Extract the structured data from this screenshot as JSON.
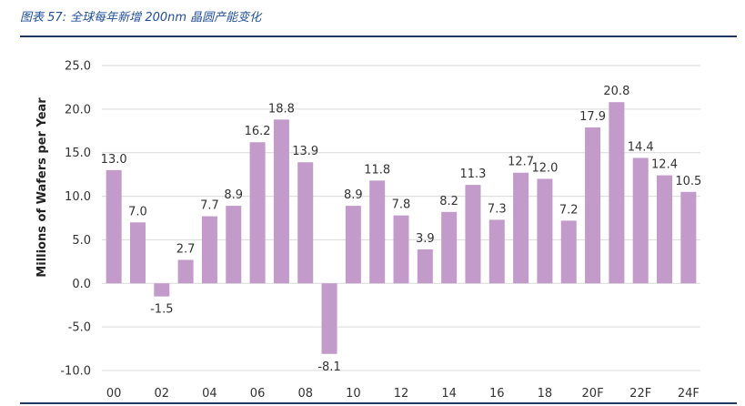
{
  "caption": "图表 57:  全球每年新增 200nm 晶圆产能变化",
  "chart_data": {
    "type": "bar",
    "ylabel": "Millions of Wafers per Year",
    "xlabel": "",
    "ylim": [
      -10,
      25
    ],
    "yticks": [
      -10,
      -5,
      0,
      5,
      10,
      15,
      20,
      25
    ],
    "ytick_labels": [
      "-10.0",
      "-5.0",
      "0.0",
      "5.0",
      "10.0",
      "15.0",
      "20.0",
      "25.0"
    ],
    "grid": true,
    "bar_color": "#c39bcb",
    "categories": [
      "00",
      "01",
      "02",
      "03",
      "04",
      "05",
      "06",
      "07",
      "08",
      "09",
      "10",
      "11",
      "12",
      "13",
      "14",
      "15",
      "16",
      "17",
      "18",
      "19",
      "20F",
      "21F",
      "22F",
      "23F",
      "24F"
    ],
    "x_tick_labels": [
      "00",
      "",
      "02",
      "",
      "04",
      "",
      "06",
      "",
      "08",
      "",
      "10",
      "",
      "12",
      "",
      "14",
      "",
      "16",
      "",
      "18",
      "",
      "20F",
      "",
      "22F",
      "",
      "24F"
    ],
    "values": [
      13.0,
      7.0,
      -1.5,
      2.7,
      7.7,
      8.9,
      16.2,
      18.8,
      13.9,
      -8.1,
      8.9,
      11.8,
      7.8,
      3.9,
      8.2,
      11.3,
      7.3,
      12.7,
      12.0,
      7.2,
      17.9,
      20.8,
      14.4,
      12.4,
      10.5
    ],
    "data_labels": [
      "13.0",
      "7.0",
      "-1.5",
      "2.7",
      "7.7",
      "8.9",
      "16.2",
      "18.8",
      "13.9",
      "-8.1",
      "8.9",
      "11.8",
      "7.8",
      "3.9",
      "8.2",
      "11.3",
      "7.3",
      "12.7",
      "12.0",
      "7.2",
      "17.9",
      "20.8",
      "14.4",
      "12.4",
      "10.5"
    ]
  }
}
